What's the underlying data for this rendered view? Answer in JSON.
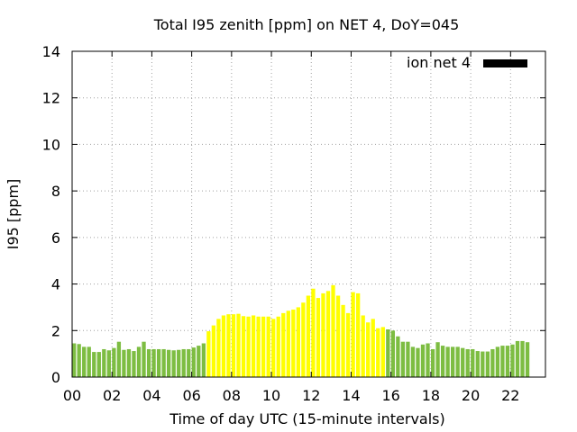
{
  "chart_data": {
    "type": "bar",
    "title": "Total I95 zenith [ppm] on NET 4, DoY=045",
    "xlabel": "Time of day UTC (15-minute intervals)",
    "ylabel": "I95 [ppm]",
    "ylim": [
      0,
      14
    ],
    "y_ticks": [
      0,
      2,
      4,
      6,
      8,
      10,
      12,
      14
    ],
    "xlim_hours": [
      0,
      23.75
    ],
    "x_ticks": [
      {
        "hour": 0,
        "label": "00"
      },
      {
        "hour": 2,
        "label": "02"
      },
      {
        "hour": 4,
        "label": "04"
      },
      {
        "hour": 6,
        "label": "06"
      },
      {
        "hour": 8,
        "label": "08"
      },
      {
        "hour": 10,
        "label": "10"
      },
      {
        "hour": 12,
        "label": "12"
      },
      {
        "hour": 14,
        "label": "14"
      },
      {
        "hour": 16,
        "label": "16"
      },
      {
        "hour": 18,
        "label": "18"
      },
      {
        "hour": 20,
        "label": "20"
      },
      {
        "hour": 22,
        "label": "22"
      }
    ],
    "grid": true,
    "legend": {
      "position": "top-right",
      "label": "ion net 4",
      "color": "#000000"
    },
    "colors": {
      "night": "#7dbd42",
      "day": "#ffff00"
    },
    "interval_hours": 0.25,
    "values": [
      1.45,
      1.42,
      1.3,
      1.3,
      1.08,
      1.08,
      1.2,
      1.15,
      1.25,
      1.52,
      1.17,
      1.2,
      1.12,
      1.3,
      1.52,
      1.2,
      1.2,
      1.2,
      1.2,
      1.17,
      1.15,
      1.17,
      1.2,
      1.2,
      1.27,
      1.35,
      1.45,
      1.97,
      2.22,
      2.5,
      2.65,
      2.7,
      2.7,
      2.72,
      2.62,
      2.6,
      2.65,
      2.6,
      2.6,
      2.6,
      2.5,
      2.6,
      2.75,
      2.85,
      2.9,
      3.0,
      3.2,
      3.5,
      3.8,
      3.4,
      3.6,
      3.7,
      3.95,
      3.5,
      3.1,
      2.75,
      3.65,
      3.6,
      2.65,
      2.35,
      2.5,
      2.1,
      2.15,
      2.05,
      2.0,
      1.75,
      1.52,
      1.52,
      1.3,
      1.25,
      1.4,
      1.45,
      1.2,
      1.5,
      1.35,
      1.3,
      1.3,
      1.3,
      1.25,
      1.2,
      1.2,
      1.12,
      1.1,
      1.1,
      1.2,
      1.3,
      1.35,
      1.35,
      1.4,
      1.55,
      1.55,
      1.5
    ],
    "day_color_range_hours": [
      6.75,
      15.75
    ]
  }
}
